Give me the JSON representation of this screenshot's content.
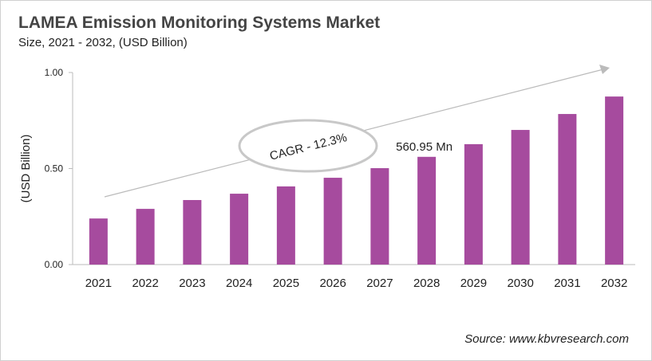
{
  "chart_data": {
    "type": "bar",
    "title": "LAMEA Emission Monitoring Systems Market",
    "subtitle": "Size, 2021 - 2032, (USD Billion)",
    "ylabel": "(USD Billion)",
    "xlabel": "",
    "categories": [
      "2021",
      "2022",
      "2023",
      "2024",
      "2025",
      "2026",
      "2027",
      "2028",
      "2029",
      "2030",
      "2031",
      "2032"
    ],
    "values": [
      0.24,
      0.29,
      0.336,
      0.369,
      0.407,
      0.452,
      0.502,
      0.561,
      0.627,
      0.701,
      0.784,
      0.875
    ],
    "ylim": [
      0,
      1
    ],
    "yticks": [
      "0.00",
      "0.50",
      "1.00"
    ],
    "grid": false,
    "bar_color": "#A64B9E",
    "annotations": {
      "cagr": "CAGR - 12.3%",
      "highlight_label": "560.95 Mn",
      "highlight_category": "2028"
    },
    "source": "Source: www.kbvresearch.com"
  }
}
